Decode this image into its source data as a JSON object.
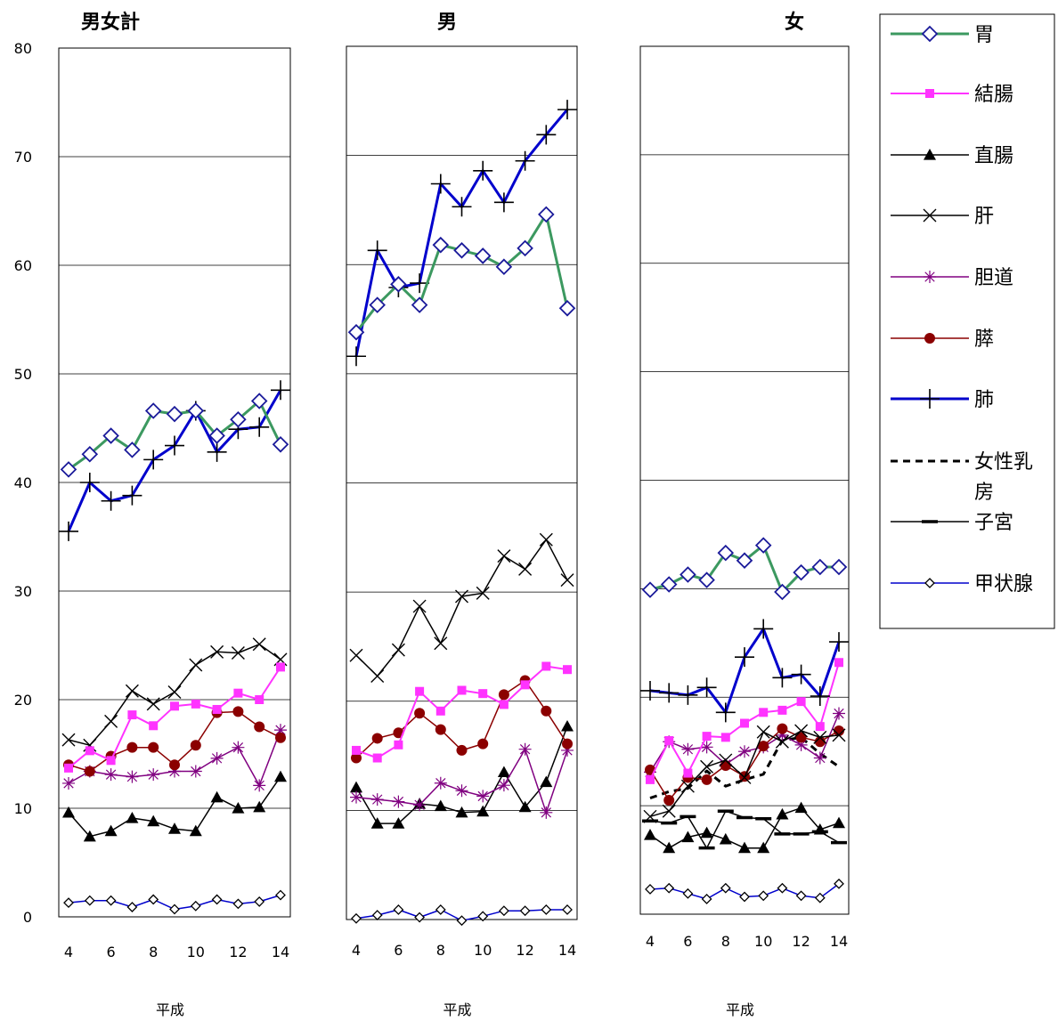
{
  "chart_data": {
    "type": "line",
    "ylim": [
      0,
      80
    ],
    "yticks": [
      0,
      10,
      20,
      30,
      40,
      50,
      60,
      70,
      80
    ],
    "grid": true,
    "x": [
      4,
      5,
      6,
      7,
      8,
      9,
      10,
      11,
      12,
      13,
      14
    ],
    "xticks": [
      4,
      6,
      8,
      10,
      12,
      14
    ],
    "xlabel_era": "平成",
    "legend_position": "right",
    "series_styles": {
      "胃": {
        "color": "#3c9960",
        "width": 3,
        "marker": "diamond-open",
        "mcolor": "#1a1a9a",
        "msize": 8
      },
      "結腸": {
        "color": "#ff33ff",
        "width": 2,
        "marker": "square",
        "mcolor": "#ff33ff",
        "msize": 5
      },
      "直腸": {
        "color": "#000000",
        "width": 1.5,
        "marker": "triangle",
        "mcolor": "#000000",
        "msize": 7
      },
      "肝": {
        "color": "#000000",
        "width": 1.5,
        "marker": "x",
        "mcolor": "#000000",
        "msize": 7
      },
      "胆道": {
        "color": "#800080",
        "width": 1.5,
        "marker": "star",
        "mcolor": "#800080",
        "msize": 7
      },
      "膵": {
        "color": "#8b0000",
        "width": 1.5,
        "marker": "circle",
        "mcolor": "#8b0000",
        "msize": 6
      },
      "肺": {
        "color": "#0000cc",
        "width": 3,
        "marker": "plus",
        "mcolor": "#000000",
        "msize": 11
      },
      "女性乳房": {
        "color": "#000000",
        "width": 3,
        "dash": "8,6",
        "marker": "none"
      },
      "子宮": {
        "color": "#000000",
        "width": 1.5,
        "marker": "hbar",
        "mcolor": "#000000",
        "msize": 9
      },
      "甲状腺": {
        "color": "#0000cc",
        "width": 1.5,
        "marker": "diamond-small",
        "mcolor": "#000000",
        "msize": 5
      }
    },
    "legend": [
      {
        "name": "胃",
        "lines": [
          "胃"
        ]
      },
      {
        "name": "結腸",
        "lines": [
          "結腸"
        ]
      },
      {
        "name": "直腸",
        "lines": [
          "直腸"
        ]
      },
      {
        "name": "肝",
        "lines": [
          "肝"
        ]
      },
      {
        "name": "胆道",
        "lines": [
          "胆道"
        ]
      },
      {
        "name": "膵",
        "lines": [
          "膵"
        ]
      },
      {
        "name": "肺",
        "lines": [
          "肺"
        ]
      },
      {
        "name": "女性乳房",
        "lines": [
          "女性乳",
          "房"
        ]
      },
      {
        "name": "子宮",
        "lines": [
          "子宮"
        ]
      },
      {
        "name": "甲状腺",
        "lines": [
          "甲状腺"
        ]
      }
    ],
    "panels": [
      {
        "title": "男女計",
        "series": [
          {
            "name": "胃",
            "values": [
              41.2,
              42.6,
              44.3,
              43.0,
              46.6,
              46.3,
              46.6,
              44.3,
              45.8,
              47.5,
              43.5
            ]
          },
          {
            "name": "肺",
            "values": [
              35.5,
              40.0,
              38.3,
              38.8,
              42.1,
              43.4,
              46.6,
              42.8,
              44.9,
              45.1,
              48.5
            ]
          },
          {
            "name": "結腸",
            "values": [
              13.7,
              15.3,
              14.4,
              18.6,
              17.6,
              19.4,
              19.6,
              19.1,
              20.6,
              20.0,
              23.0
            ]
          },
          {
            "name": "直腸",
            "values": [
              9.6,
              7.4,
              7.9,
              9.1,
              8.8,
              8.1,
              7.9,
              11.0,
              10.0,
              10.1,
              12.9
            ]
          },
          {
            "name": "肝",
            "values": [
              16.3,
              15.8,
              18.0,
              20.8,
              19.6,
              20.7,
              23.2,
              24.4,
              24.3,
              25.1,
              23.7
            ]
          },
          {
            "name": "胆道",
            "values": [
              12.3,
              13.4,
              13.1,
              12.9,
              13.1,
              13.4,
              13.4,
              14.6,
              15.6,
              12.1,
              17.2
            ]
          },
          {
            "name": "膵",
            "values": [
              14.0,
              13.4,
              14.8,
              15.6,
              15.6,
              14.0,
              15.8,
              18.8,
              18.9,
              17.5,
              16.5
            ]
          },
          {
            "name": "甲状腺",
            "values": [
              1.3,
              1.5,
              1.5,
              0.9,
              1.6,
              0.7,
              1.0,
              1.6,
              1.2,
              1.4,
              2.0
            ]
          }
        ]
      },
      {
        "title": "男",
        "series": [
          {
            "name": "胃",
            "values": [
              53.8,
              56.3,
              58.2,
              56.3,
              61.8,
              61.3,
              60.8,
              59.8,
              61.5,
              64.6,
              56.0
            ]
          },
          {
            "name": "肺",
            "values": [
              51.6,
              61.3,
              57.9,
              58.3,
              67.4,
              65.3,
              68.6,
              65.7,
              69.5,
              71.9,
              74.2
            ]
          },
          {
            "name": "結腸",
            "values": [
              15.5,
              14.8,
              16.0,
              20.9,
              19.1,
              21.0,
              20.7,
              19.7,
              21.5,
              23.2,
              22.9
            ]
          },
          {
            "name": "直腸",
            "values": [
              12.1,
              8.8,
              8.8,
              10.6,
              10.4,
              9.8,
              9.9,
              13.5,
              10.3,
              12.6,
              17.7
            ]
          },
          {
            "name": "肝",
            "values": [
              24.2,
              22.3,
              24.7,
              28.7,
              25.3,
              29.6,
              29.9,
              33.3,
              32.1,
              34.8,
              31.1
            ]
          },
          {
            "name": "胆道",
            "values": [
              11.2,
              11.0,
              10.8,
              10.5,
              12.5,
              11.8,
              11.3,
              12.3,
              15.6,
              9.8,
              15.5
            ]
          },
          {
            "name": "膵",
            "values": [
              14.8,
              16.6,
              17.1,
              18.9,
              17.4,
              15.5,
              16.1,
              20.6,
              21.9,
              19.1,
              16.1
            ]
          },
          {
            "name": "甲状腺",
            "values": [
              0.1,
              0.4,
              0.9,
              0.2,
              0.9,
              -0.1,
              0.3,
              0.8,
              0.8,
              0.9,
              0.9
            ]
          }
        ]
      },
      {
        "title": "女",
        "series": [
          {
            "name": "胃",
            "values": [
              29.9,
              30.4,
              31.3,
              30.8,
              33.3,
              32.6,
              34.0,
              29.7,
              31.5,
              32.0,
              32.0
            ]
          },
          {
            "name": "肺",
            "values": [
              20.6,
              20.4,
              20.2,
              20.9,
              18.6,
              23.7,
              26.3,
              21.8,
              22.1,
              20.1,
              25.1
            ]
          },
          {
            "name": "結腸",
            "values": [
              12.4,
              16.0,
              13.0,
              16.4,
              16.3,
              17.6,
              18.6,
              18.8,
              19.6,
              17.3,
              23.2
            ]
          },
          {
            "name": "直腸",
            "values": [
              7.3,
              6.1,
              7.1,
              7.5,
              6.9,
              6.1,
              6.1,
              9.2,
              9.8,
              7.8,
              8.4
            ]
          },
          {
            "name": "肝",
            "values": [
              9.0,
              9.5,
              11.8,
              13.6,
              14.2,
              12.6,
              16.8,
              15.9,
              16.9,
              16.3,
              16.5
            ]
          },
          {
            "name": "胆道",
            "values": [
              13.1,
              15.9,
              15.2,
              15.4,
              13.8,
              15.0,
              15.4,
              16.5,
              15.6,
              14.4,
              18.5
            ]
          },
          {
            "name": "膵",
            "values": [
              13.3,
              10.5,
              12.6,
              12.4,
              13.7,
              12.7,
              15.5,
              17.1,
              16.3,
              15.9,
              16.9
            ]
          },
          {
            "name": "女性乳房",
            "values": [
              10.7,
              11.3,
              11.6,
              13.2,
              11.8,
              12.4,
              12.9,
              16.0,
              16.3,
              14.8,
              13.6
            ]
          },
          {
            "name": "子宮",
            "values": [
              8.6,
              8.4,
              9.0,
              6.1,
              9.5,
              8.9,
              8.8,
              7.4,
              7.4,
              7.6,
              6.6
            ]
          },
          {
            "name": "甲状腺",
            "values": [
              2.3,
              2.4,
              1.9,
              1.4,
              2.4,
              1.6,
              1.7,
              2.4,
              1.7,
              1.5,
              2.8
            ]
          }
        ]
      }
    ]
  }
}
